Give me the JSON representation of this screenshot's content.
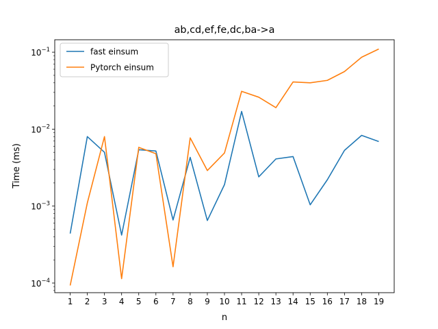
{
  "chart_data": {
    "type": "line",
    "title": "ab,cd,ef,fe,dc,ba->a",
    "xlabel": "n",
    "ylabel": "Time (ms)",
    "x": [
      1,
      2,
      3,
      4,
      5,
      6,
      7,
      8,
      9,
      10,
      11,
      12,
      13,
      14,
      15,
      16,
      17,
      18,
      19
    ],
    "xlim": [
      0.1,
      19.9
    ],
    "y_scale": "log",
    "ylim": [
      7.5e-05,
      0.145
    ],
    "y_ticks": [
      {
        "value": 0.0001,
        "base": "10",
        "exp": "−4"
      },
      {
        "value": 0.001,
        "base": "10",
        "exp": "−3"
      },
      {
        "value": 0.01,
        "base": "10",
        "exp": "−2"
      },
      {
        "value": 0.1,
        "base": "10",
        "exp": "−1"
      }
    ],
    "grid": false,
    "legend_position": "top-left",
    "series": [
      {
        "name": "fast einsum",
        "color": "#1f77b4",
        "values": [
          0.00044,
          0.008,
          0.005,
          0.00042,
          0.0054,
          0.0052,
          0.00066,
          0.0043,
          0.00065,
          0.0019,
          0.017,
          0.0024,
          0.0041,
          0.0044,
          0.00104,
          0.0022,
          0.0053,
          0.0083,
          0.0069
        ]
      },
      {
        "name": "Pytorch einsum",
        "color": "#ff7f0e",
        "values": [
          9.3e-05,
          0.0011,
          0.008,
          0.000114,
          0.0058,
          0.0048,
          0.000163,
          0.0077,
          0.0029,
          0.0049,
          0.031,
          0.026,
          0.019,
          0.041,
          0.04,
          0.043,
          0.056,
          0.086,
          0.11
        ]
      }
    ]
  }
}
